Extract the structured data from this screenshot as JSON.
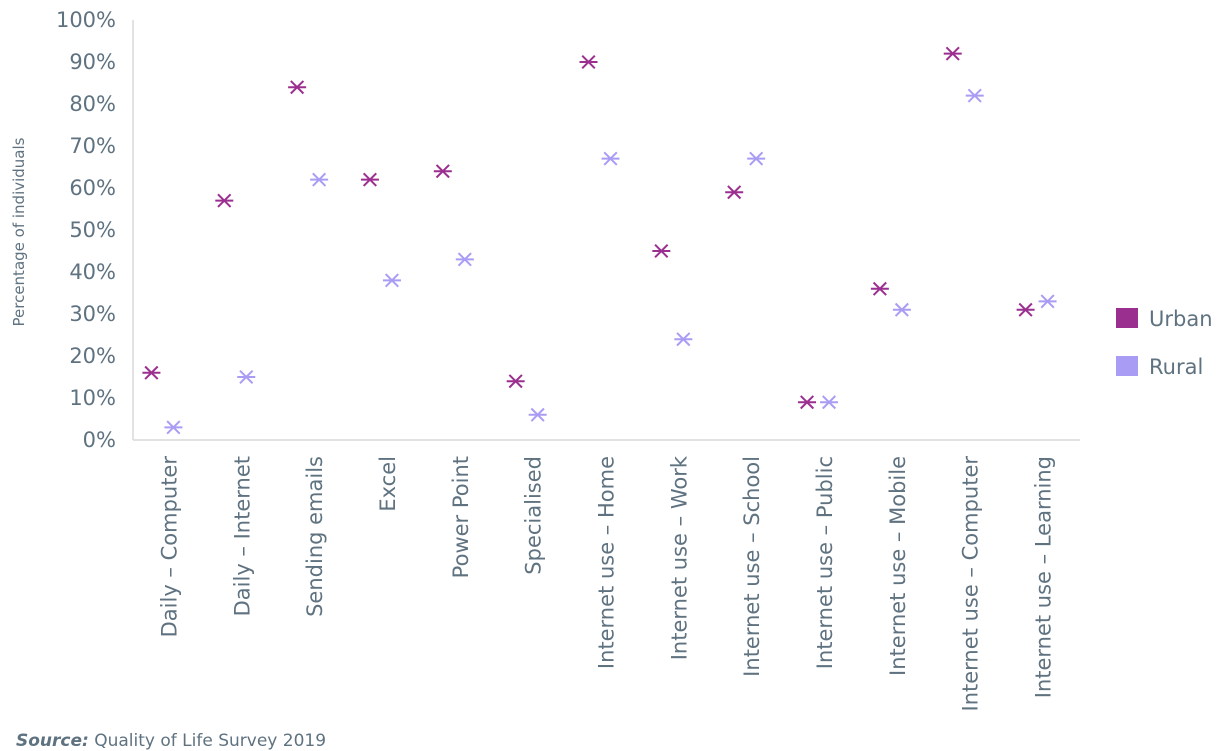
{
  "chart_data": {
    "type": "scatter",
    "ylabel": "Percentage of individuals",
    "ylim": [
      0,
      100
    ],
    "y_ticks": [
      "0%",
      "10%",
      "20%",
      "30%",
      "40%",
      "50%",
      "60%",
      "70%",
      "80%",
      "90%",
      "100%"
    ],
    "categories": [
      "Daily – Computer",
      "Daily – Internet",
      "Sending emails",
      "Excel",
      "Power Point",
      "Specialised",
      "Internet use – Home",
      "Internet use – Work",
      "Internet use – School",
      "Internet use – Public",
      "Internet use – Mobile",
      "Internet use – Computer",
      "Internet use – Learning"
    ],
    "series": [
      {
        "name": "Urban",
        "color": "#9b2f8f",
        "values": [
          16,
          57,
          84,
          62,
          64,
          14,
          90,
          45,
          59,
          9,
          36,
          92,
          31
        ]
      },
      {
        "name": "Rural",
        "color": "#a99cf5",
        "values": [
          3,
          15,
          62,
          38,
          43,
          6,
          67,
          24,
          67,
          9,
          31,
          82,
          33
        ]
      }
    ],
    "legend_position": "right",
    "grid": false
  },
  "source": {
    "label": "Source:",
    "text": "Quality of Life Survey 2019"
  }
}
